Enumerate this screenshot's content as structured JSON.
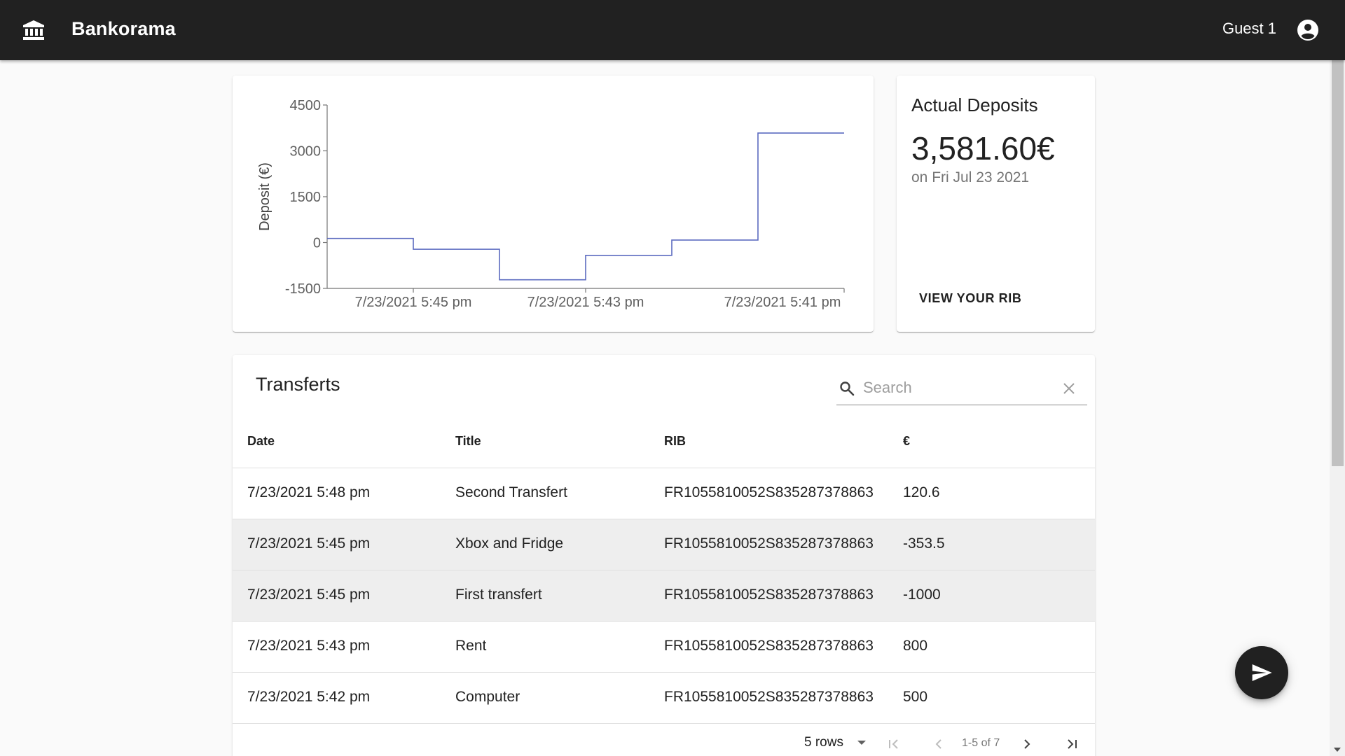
{
  "app": {
    "title": "Bankorama",
    "user": "Guest 1"
  },
  "chart_data": {
    "type": "line",
    "step": true,
    "ylabel": "Deposit (€)",
    "xlabel": "",
    "ylim": [
      -1500,
      4500
    ],
    "yticks": [
      "4500",
      "3000",
      "1500",
      "0",
      "-1500"
    ],
    "xticks": [
      "7/23/2021 5:45 pm",
      "7/23/2021 5:43 pm",
      "7/23/2021 5:41 pm"
    ],
    "x_order": "newest-left",
    "series": [
      {
        "color": "#5c6bc0",
        "points": [
          {
            "x": "7/23/2021 5:48 pm",
            "y": 134.6
          },
          {
            "x": "7/23/2021 5:45 pm",
            "y": -218.9
          },
          {
            "x": "7/23/2021 5:45 pm",
            "y": -1218.9
          },
          {
            "x": "7/23/2021 5:43 pm",
            "y": -418.9
          },
          {
            "x": "7/23/2021 5:42 pm",
            "y": 81.1
          },
          {
            "x": "7/23/2021 5:41 pm",
            "y": 3581.6
          }
        ]
      }
    ]
  },
  "deposits": {
    "title": "Actual Deposits",
    "amount": "3,581.60€",
    "date": "on Fri Jul 23 2021",
    "rib_button": "VIEW YOUR RIB"
  },
  "transfers": {
    "title": "Transferts",
    "search_placeholder": "Search",
    "columns": [
      "Date",
      "Title",
      "RIB",
      "€"
    ],
    "rows": [
      {
        "date": "7/23/2021 5:48 pm",
        "title": "Second Transfert",
        "rib": "FR1055810052S835287378863",
        "amount": "120.6"
      },
      {
        "date": "7/23/2021 5:45 pm",
        "title": "Xbox and Fridge",
        "rib": "FR1055810052S835287378863",
        "amount": "-353.5"
      },
      {
        "date": "7/23/2021 5:45 pm",
        "title": "First transfert",
        "rib": "FR1055810052S835287378863",
        "amount": "-1000"
      },
      {
        "date": "7/23/2021 5:43 pm",
        "title": "Rent",
        "rib": "FR1055810052S835287378863",
        "amount": "800"
      },
      {
        "date": "7/23/2021 5:42 pm",
        "title": "Computer",
        "rib": "FR1055810052S835287378863",
        "amount": "500"
      }
    ],
    "pagination": {
      "rows_per_page": "5 rows",
      "page_info": "1-5 of 7"
    }
  }
}
